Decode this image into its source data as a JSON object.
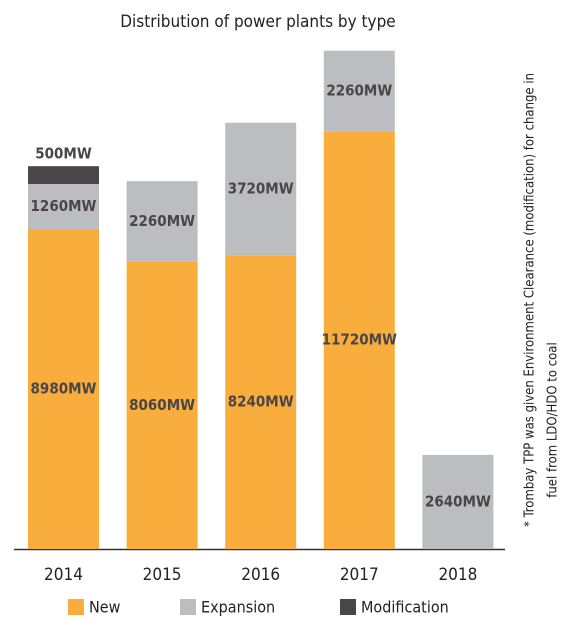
{
  "chart_data": {
    "type": "stacked_bar",
    "title": "Distribution of power plants by type",
    "categories": [
      "2014",
      "2015",
      "2016",
      "2017",
      "2018"
    ],
    "series": [
      {
        "name": "New",
        "color": "#f9ad3c",
        "values": [
          8980,
          8060,
          8240,
          11720,
          null
        ],
        "value_labels": [
          "8980MW",
          "8060MW",
          "8240MW",
          "11720MW",
          null
        ]
      },
      {
        "name": "Expansion",
        "color": "#bcbdc1",
        "values": [
          1260,
          2260,
          3720,
          2260,
          2640
        ],
        "value_labels": [
          "1260MW",
          "2260MW",
          "3720MW",
          "2260MW",
          "2640MW"
        ]
      },
      {
        "name": "Modification",
        "color": "#4a4546",
        "values": [
          500,
          null,
          null,
          null,
          null
        ],
        "value_labels": [
          "500MW",
          null,
          null,
          null,
          null
        ]
      }
    ],
    "ylim": [
      0,
      14000
    ],
    "annotation": [
      "* Trombay TPP was given Environment Clearance (modification) for change in",
      "fuel from LDO/HDO to coal"
    ]
  }
}
